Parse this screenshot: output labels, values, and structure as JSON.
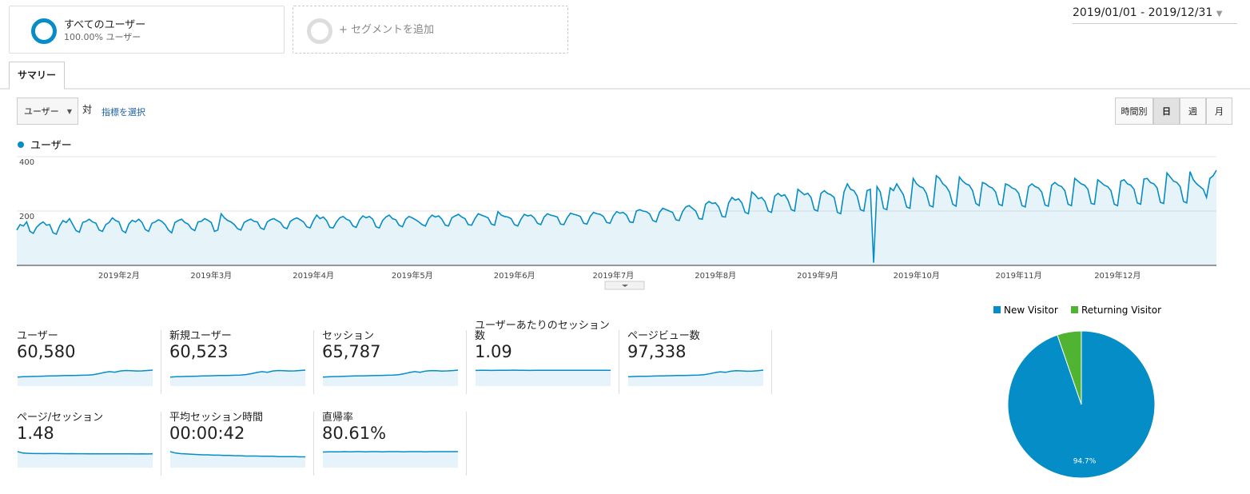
{
  "segments": [
    {
      "name": "すべてのユーザー",
      "detail": "100.00% ユーザー"
    },
    {
      "name": "+ セグメントを追加"
    }
  ],
  "date_range": "2019/01/01 - 2019/12/31",
  "tab": "サマリー",
  "metric_select": "ユーザー",
  "versus": "対",
  "select_metric": "指標を選択",
  "granularity": [
    "時間別",
    "日",
    "週",
    "月"
  ],
  "chart_data": [
    {
      "type": "line",
      "xlim": [
        0,
        364
      ],
      "xticks": [
        {
          "value": 31,
          "label": "2019年2月"
        },
        {
          "value": 59,
          "label": "2019年3月"
        },
        {
          "value": 90,
          "label": "2019年4月"
        },
        {
          "value": 120,
          "label": "2019年5月"
        },
        {
          "value": 151,
          "label": "2019年6月"
        },
        {
          "value": 181,
          "label": "2019年7月"
        },
        {
          "value": 212,
          "label": "2019年8月"
        },
        {
          "value": 243,
          "label": "2019年9月"
        },
        {
          "value": 273,
          "label": "2019年10月"
        },
        {
          "value": 304,
          "label": "2019年11月"
        },
        {
          "value": 334,
          "label": "2019年12月"
        }
      ],
      "ylim": [
        0,
        400
      ],
      "yticks": [
        200,
        400
      ],
      "grid": true,
      "series": [
        {
          "name": "ユーザー",
          "color": "#058dc7",
          "values": [
            130,
            150,
            145,
            160,
            125,
            118,
            140,
            152,
            160,
            148,
            150,
            120,
            115,
            145,
            165,
            158,
            172,
            150,
            128,
            122,
            158,
            162,
            170,
            160,
            155,
            130,
            125,
            150,
            158,
            175,
            165,
            160,
            128,
            120,
            152,
            166,
            160,
            170,
            158,
            132,
            125,
            155,
            160,
            168,
            162,
            150,
            130,
            120,
            158,
            165,
            170,
            158,
            152,
            135,
            128,
            160,
            162,
            172,
            166,
            158,
            125,
            130,
            190,
            175,
            165,
            160,
            150,
            135,
            130,
            158,
            165,
            170,
            162,
            160,
            138,
            132,
            160,
            168,
            172,
            165,
            158,
            140,
            135,
            162,
            170,
            175,
            168,
            160,
            142,
            138,
            165,
            185,
            172,
            178,
            165,
            140,
            138,
            160,
            175,
            180,
            170,
            165,
            145,
            140,
            168,
            182,
            175,
            180,
            170,
            142,
            138,
            165,
            178,
            185,
            172,
            168,
            148,
            142,
            170,
            180,
            175,
            168,
            160,
            150,
            145,
            172,
            185,
            178,
            182,
            170,
            148,
            145,
            175,
            182,
            188,
            178,
            172,
            150,
            148,
            172,
            190,
            185,
            180,
            175,
            152,
            148,
            198,
            185,
            180,
            178,
            172,
            150,
            145,
            170,
            188,
            182,
            185,
            175,
            155,
            150,
            178,
            190,
            185,
            182,
            178,
            152,
            150,
            175,
            192,
            188,
            185,
            180,
            155,
            152,
            180,
            195,
            190,
            188,
            180,
            158,
            155,
            182,
            198,
            192,
            195,
            185,
            160,
            158,
            200,
            205,
            200,
            198,
            190,
            165,
            160,
            195,
            210,
            205,
            200,
            195,
            168,
            165,
            198,
            215,
            220,
            210,
            200,
            172,
            170,
            225,
            235,
            228,
            230,
            215,
            180,
            178,
            230,
            250,
            240,
            245,
            230,
            195,
            190,
            270,
            260,
            245,
            250,
            235,
            200,
            195,
            255,
            265,
            255,
            260,
            240,
            205,
            200,
            280,
            270,
            260,
            265,
            250,
            205,
            200,
            265,
            275,
            265,
            260,
            250,
            195,
            190,
            270,
            300,
            280,
            275,
            255,
            205,
            200,
            275,
            280,
            10,
            290,
            270,
            210,
            205,
            285,
            275,
            300,
            280,
            260,
            215,
            210,
            320,
            300,
            290,
            285,
            265,
            220,
            215,
            330,
            320,
            300,
            290,
            270,
            225,
            218,
            325,
            310,
            300,
            295,
            275,
            228,
            220,
            305,
            300,
            290,
            285,
            270,
            225,
            220,
            300,
            295,
            285,
            280,
            265,
            220,
            215,
            290,
            300,
            290,
            285,
            270,
            222,
            218,
            295,
            305,
            295,
            290,
            275,
            225,
            220,
            320,
            310,
            300,
            295,
            280,
            228,
            225,
            315,
            305,
            295,
            290,
            275,
            225,
            220,
            310,
            315,
            300,
            295,
            280,
            230,
            225,
            318,
            320,
            305,
            300,
            285,
            232,
            228,
            340,
            325,
            310,
            305,
            290,
            235,
            230,
            345,
            315,
            300,
            290,
            280,
            250,
            320,
            330,
            350
          ]
        }
      ]
    },
    {
      "type": "pie",
      "categories": [
        "New Visitor",
        "Returning Visitor"
      ],
      "values": [
        94.7,
        5.3
      ],
      "value_labels": [
        "94.7%",
        null
      ],
      "colors": [
        "#058dc7",
        "#50b432"
      ]
    }
  ],
  "scorecards": [
    {
      "label": "ユーザー",
      "value": "60,580",
      "spark": [
        150,
        155,
        158,
        160,
        162,
        165,
        168,
        170,
        172,
        175,
        176,
        178,
        180,
        182,
        190,
        205,
        225,
        240,
        230,
        250,
        258,
        255,
        250,
        252,
        258,
        265
      ]
    },
    {
      "label": "新規ユーザー",
      "value": "60,523",
      "spark": [
        149,
        154,
        157,
        160,
        161,
        164,
        168,
        169,
        171,
        175,
        176,
        177,
        180,
        181,
        190,
        204,
        224,
        239,
        229,
        249,
        257,
        254,
        249,
        251,
        257,
        264
      ]
    },
    {
      "label": "セッション",
      "value": "65,787",
      "spark": [
        163,
        168,
        172,
        174,
        176,
        180,
        183,
        185,
        187,
        190,
        191,
        193,
        196,
        198,
        207,
        223,
        245,
        261,
        250,
        272,
        281,
        278,
        272,
        275,
        281,
        289
      ]
    },
    {
      "label": "ユーザーあたりのセッション数",
      "value": "1.09",
      "spark": [
        1.08,
        1.09,
        1.09,
        1.08,
        1.09,
        1.09,
        1.09,
        1.1,
        1.09,
        1.09,
        1.08,
        1.09,
        1.09,
        1.09,
        1.09,
        1.09,
        1.09,
        1.09,
        1.09,
        1.09,
        1.09,
        1.09,
        1.09,
        1.09,
        1.09,
        1.09
      ]
    },
    {
      "label": "ページビュー数",
      "value": "97,338",
      "spark": [
        250,
        258,
        262,
        265,
        266,
        270,
        275,
        278,
        280,
        284,
        285,
        288,
        292,
        294,
        306,
        330,
        362,
        385,
        370,
        400,
        412,
        408,
        400,
        405,
        415,
        430
      ]
    },
    {
      "label": "ページ/セッション",
      "value": "1.48",
      "spark": [
        1.7,
        1.55,
        1.52,
        1.5,
        1.5,
        1.49,
        1.5,
        1.5,
        1.49,
        1.48,
        1.49,
        1.48,
        1.48,
        1.47,
        1.48,
        1.47,
        1.47,
        1.46,
        1.47,
        1.46,
        1.46,
        1.46,
        1.45,
        1.46,
        1.45,
        1.46
      ]
    },
    {
      "label": "平均セッション時間",
      "value": "00:00:42",
      "spark": [
        55,
        50,
        48,
        47,
        46,
        45,
        44,
        44,
        43,
        43,
        42,
        42,
        41,
        41,
        40,
        40,
        40,
        39,
        39,
        39,
        38,
        38,
        38,
        38,
        37,
        37
      ]
    },
    {
      "label": "直帰率",
      "value": "80.61%",
      "spark": [
        79,
        80,
        80,
        80,
        81,
        80,
        81,
        81,
        80,
        81,
        81,
        80,
        81,
        81,
        81,
        80,
        81,
        81,
        81,
        80,
        81,
        81,
        81,
        81,
        81,
        81
      ]
    }
  ]
}
